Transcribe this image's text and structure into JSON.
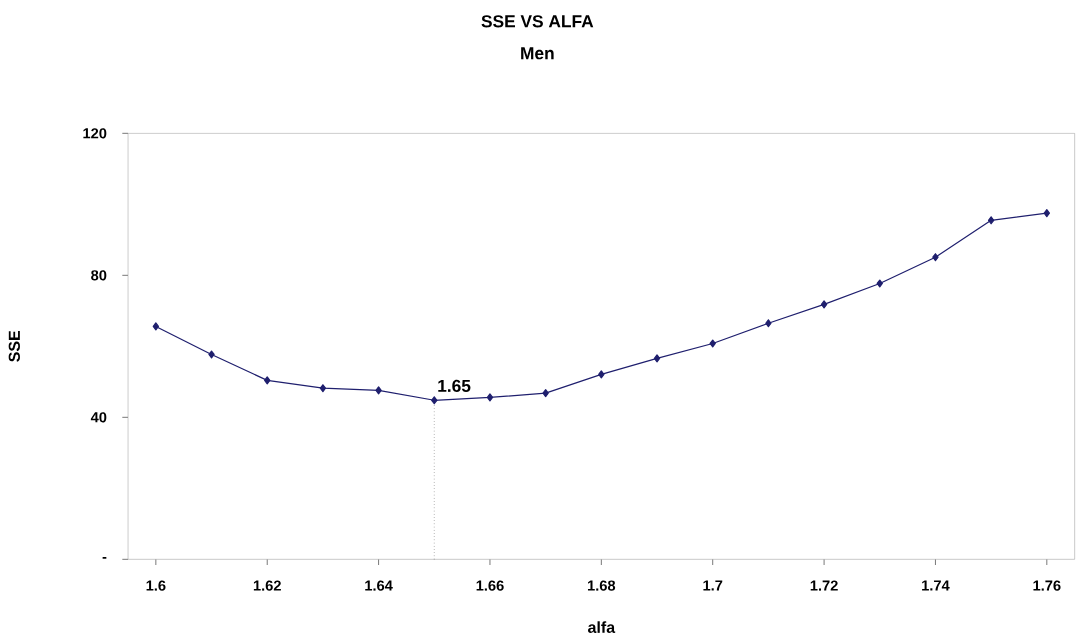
{
  "chart_data": {
    "type": "line",
    "title": "SSE VS ALFA",
    "subtitle": "Men",
    "xlabel": "alfa",
    "ylabel": "SSE",
    "x": [
      1.6,
      1.61,
      1.62,
      1.63,
      1.64,
      1.65,
      1.66,
      1.67,
      1.68,
      1.69,
      1.7,
      1.71,
      1.72,
      1.73,
      1.74,
      1.75,
      1.76
    ],
    "series": [
      {
        "color": "#1f1f6e",
        "values": [
          65.6,
          57.7,
          50.4,
          48.2,
          47.6,
          44.8,
          45.6,
          46.8,
          52.1,
          56.6,
          60.8,
          66.5,
          71.8,
          77.7,
          85.1,
          95.5,
          97.5
        ]
      }
    ],
    "xlim": [
      1.595,
      1.765
    ],
    "xticks": [
      1.6,
      1.62,
      1.64,
      1.66,
      1.68,
      1.7,
      1.72,
      1.74,
      1.76
    ],
    "ylim": [
      0,
      120
    ],
    "yticks": [
      {
        "value": 0,
        "label": "-"
      },
      40,
      80,
      120
    ],
    "ref_lines": [
      {
        "axis": "x",
        "value": 1.65,
        "line_style": "dotted"
      }
    ],
    "annotations": [
      {
        "text": "1.65",
        "x": 1.65,
        "y": 44.8
      }
    ],
    "marker": "diamond",
    "line_style": "solid",
    "grid": false
  }
}
